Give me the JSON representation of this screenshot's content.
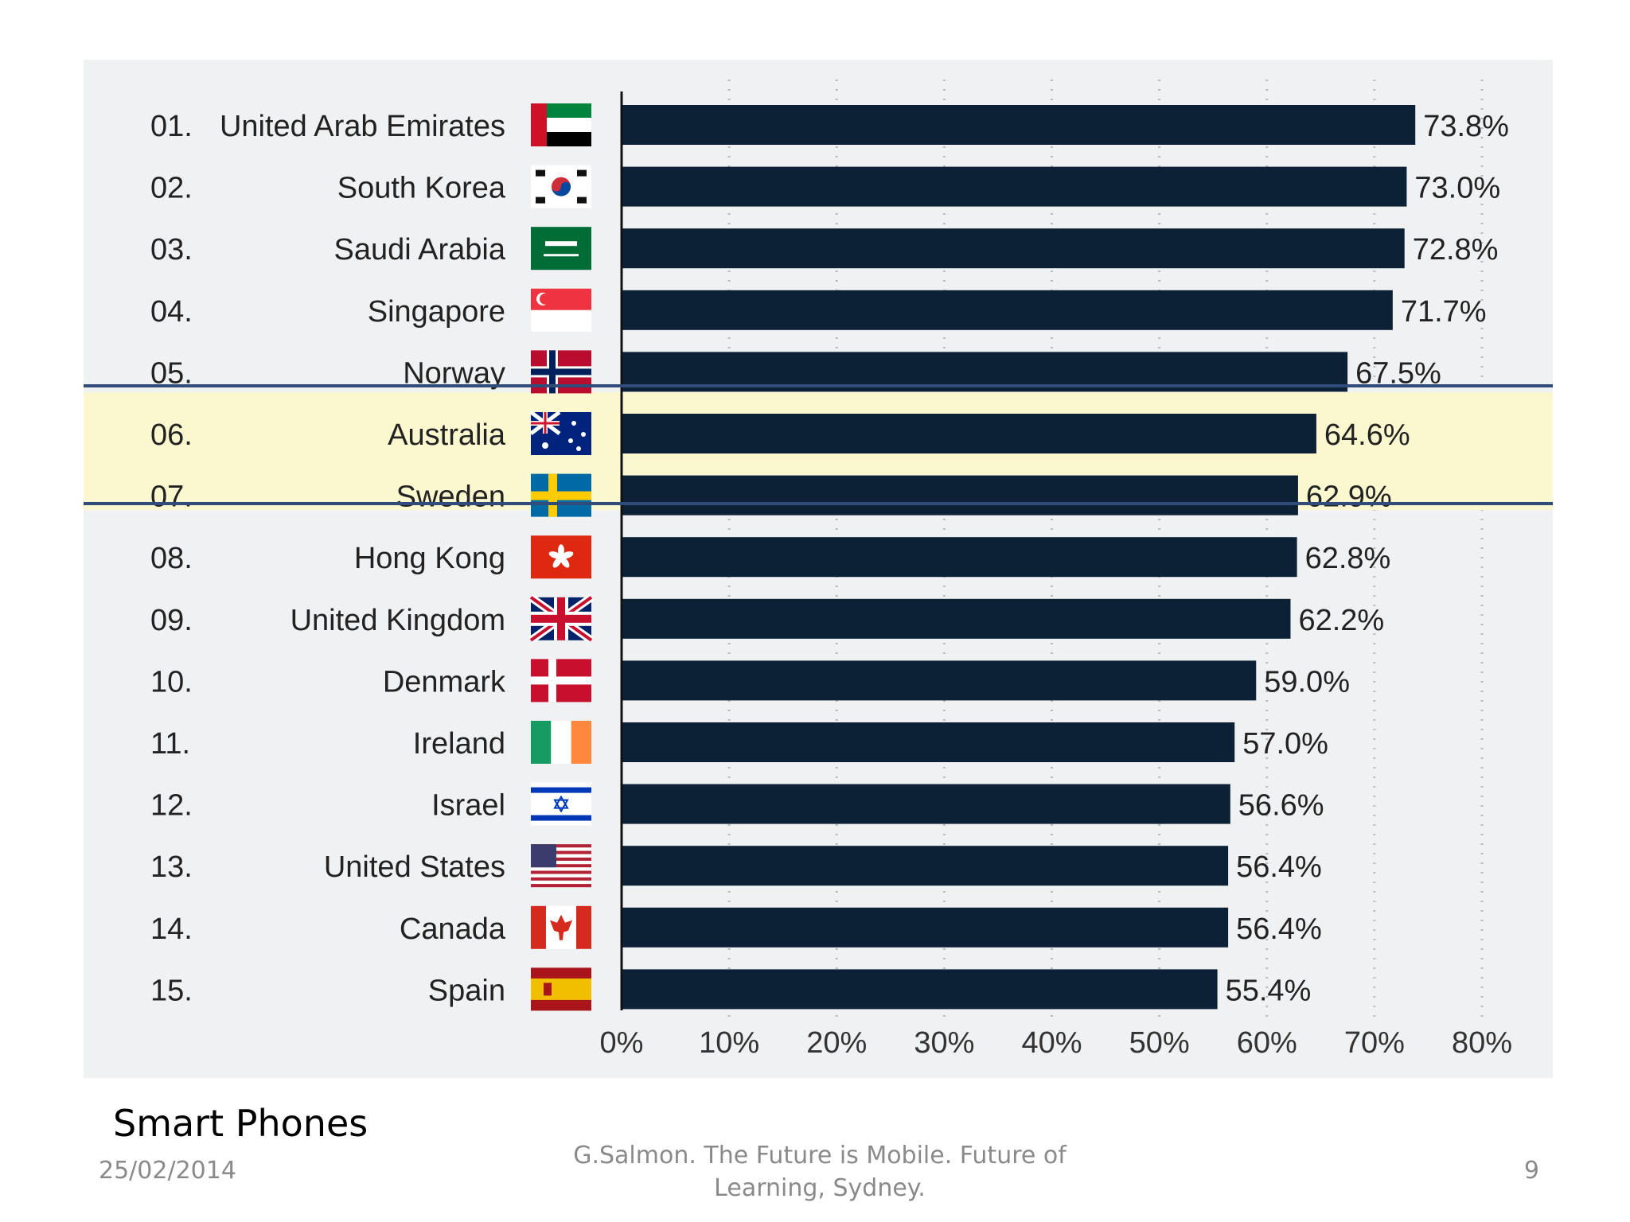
{
  "chart_data": {
    "type": "bar",
    "orientation": "horizontal",
    "categories": [
      "United Arab Emirates",
      "South Korea",
      "Saudi Arabia",
      "Singapore",
      "Norway",
      "Australia",
      "Sweden",
      "Hong Kong",
      "United Kingdom",
      "Denmark",
      "Ireland",
      "Israel",
      "United States",
      "Canada",
      "Spain"
    ],
    "ranks": [
      "01.",
      "02.",
      "03.",
      "04.",
      "05.",
      "06.",
      "07.",
      "08.",
      "09.",
      "10.",
      "11.",
      "12.",
      "13.",
      "14.",
      "15."
    ],
    "values": [
      73.8,
      73.0,
      72.8,
      71.7,
      67.5,
      64.6,
      62.9,
      62.8,
      62.2,
      59.0,
      57.0,
      56.6,
      56.4,
      56.4,
      55.4
    ],
    "value_labels": [
      "73.8%",
      "73.0%",
      "72.8%",
      "71.7%",
      "67.5%",
      "64.6%",
      "62.9%",
      "62.8%",
      "62.2%",
      "59.0%",
      "57.0%",
      "56.6%",
      "56.4%",
      "56.4%",
      "55.4%"
    ],
    "flags": [
      "uae-flag-icon",
      "south-korea-flag-icon",
      "saudi-arabia-flag-icon",
      "singapore-flag-icon",
      "norway-flag-icon",
      "australia-flag-icon",
      "sweden-flag-icon",
      "hong-kong-flag-icon",
      "united-kingdom-flag-icon",
      "denmark-flag-icon",
      "ireland-flag-icon",
      "israel-flag-icon",
      "united-states-flag-icon",
      "canada-flag-icon",
      "spain-flag-icon"
    ],
    "xlim": [
      0,
      80
    ],
    "xticks": [
      0,
      10,
      20,
      30,
      40,
      50,
      60,
      70,
      80
    ],
    "xtick_labels": [
      "0%",
      "10%",
      "20%",
      "30%",
      "40%",
      "50%",
      "60%",
      "70%",
      "80%"
    ],
    "grid": "vertical dotted",
    "highlight_category": "Australia",
    "colors": {
      "bar": "#0c2135",
      "highlight_fill": "#fbf7cf",
      "highlight_border": "#2f4c7a",
      "text": "#222222",
      "panel": "#f0f1f2"
    }
  },
  "slide": {
    "caption": "Smart Phones",
    "date": "25/02/2014",
    "citation_line1": "G.Salmon. The Future is Mobile. Future of",
    "citation_line2": "Learning, Sydney.",
    "page_number": "9"
  }
}
